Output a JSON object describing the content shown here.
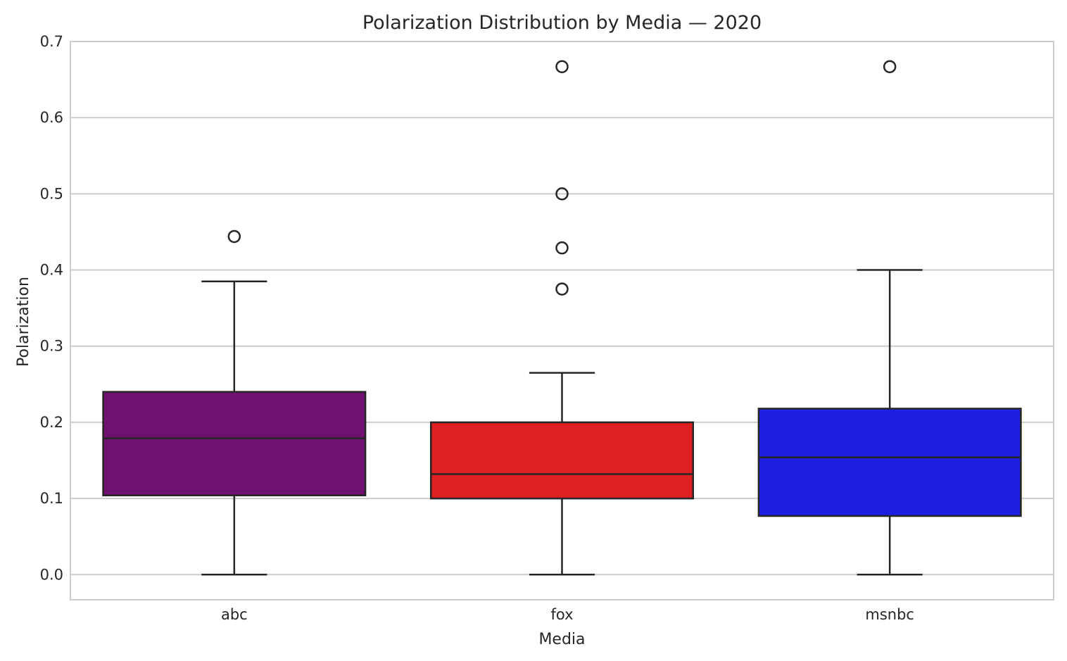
{
  "chart_data": {
    "type": "box",
    "title": "Polarization Distribution by Media — 2020",
    "xlabel": "Media",
    "ylabel": "Polarization",
    "ylim": [
      -0.033,
      0.7
    ],
    "yticks": [
      "0.0",
      "0.1",
      "0.2",
      "0.3",
      "0.4",
      "0.5",
      "0.6",
      "0.7"
    ],
    "grid": true,
    "legend": "none",
    "categories": [
      "abc",
      "fox",
      "msnbc"
    ],
    "boxes": [
      {
        "category": "abc",
        "color": "#701070",
        "whisker_low": 0.0,
        "q1": 0.104,
        "median": 0.179,
        "q3": 0.24,
        "whisker_high": 0.385,
        "outliers": [
          0.444
        ]
      },
      {
        "category": "fox",
        "color": "#dd2020",
        "whisker_low": 0.0,
        "q1": 0.1,
        "median": 0.132,
        "q3": 0.2,
        "whisker_high": 0.265,
        "outliers": [
          0.667,
          0.5,
          0.429,
          0.375
        ]
      },
      {
        "category": "msnbc",
        "color": "#1f1fe2",
        "whisker_low": 0.0,
        "q1": 0.077,
        "median": 0.154,
        "q3": 0.218,
        "whisker_high": 0.4,
        "outliers": [
          0.667
        ]
      }
    ]
  }
}
